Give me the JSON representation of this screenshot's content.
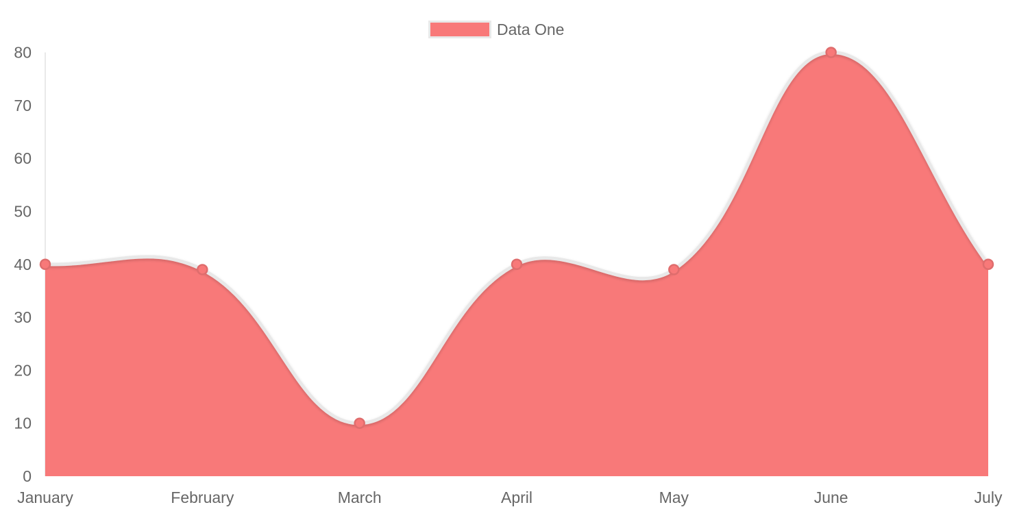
{
  "chart_data": {
    "type": "area",
    "title": "",
    "categories": [
      "January",
      "February",
      "March",
      "April",
      "May",
      "June",
      "July"
    ],
    "series": [
      {
        "name": "Data One",
        "values": [
          40,
          39,
          10,
          40,
          39,
          80,
          40
        ]
      }
    ],
    "xlabel": "",
    "ylabel": "",
    "ylim": [
      0,
      80
    ],
    "y_ticks": [
      0,
      10,
      20,
      30,
      40,
      50,
      60,
      70,
      80
    ],
    "legend_position": "top",
    "grid": false,
    "line_tension": 0.4
  },
  "legend": {
    "label": "Data One"
  },
  "colors": {
    "fill": "#f87979",
    "line": "#e8e8e8",
    "point_fill": "#f87979",
    "point_border": "#df6d6d",
    "axis_line": "#e9e9e9",
    "tick_text": "#666666",
    "legend_text": "#666666",
    "legend_swatch_border": "#e9e9e9",
    "background": "#ffffff"
  }
}
